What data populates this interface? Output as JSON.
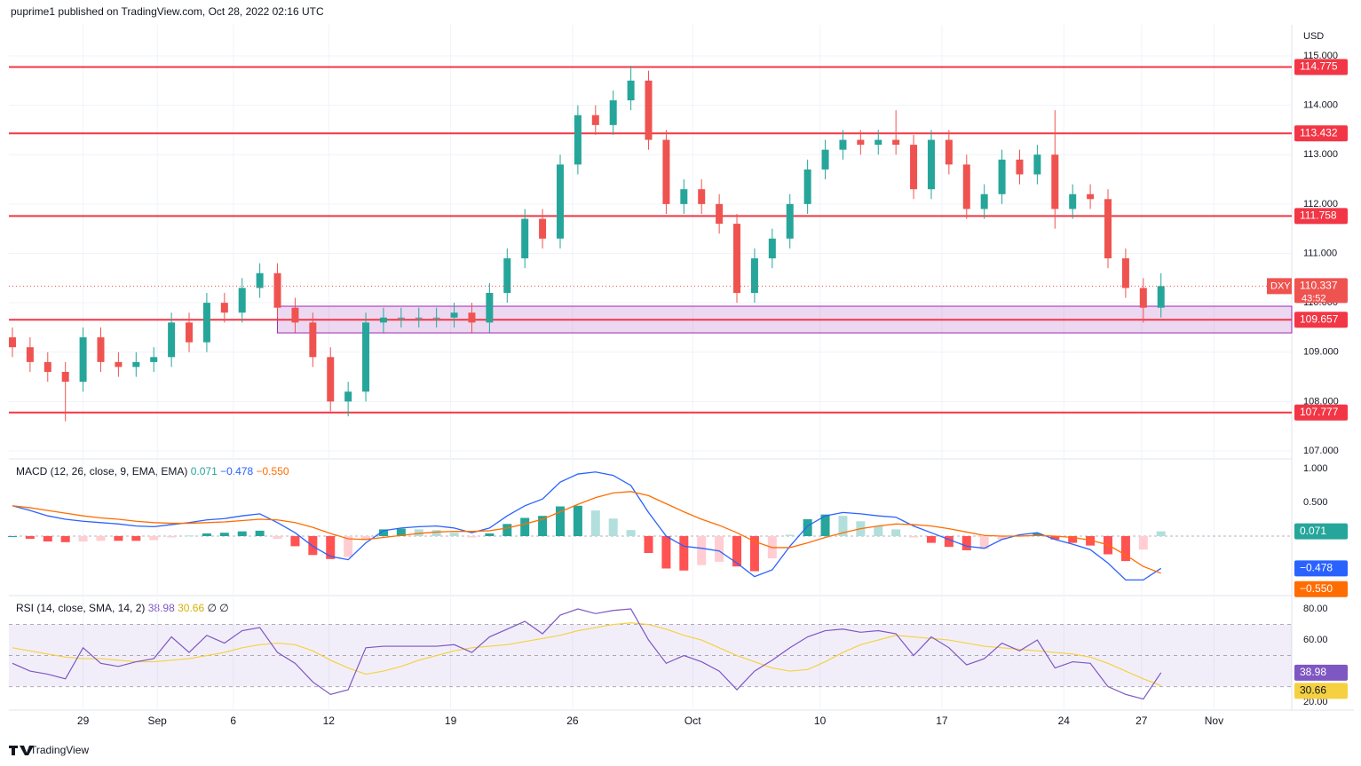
{
  "header": {
    "attribution": "puprime1 published on TradingView.com, Oct 28, 2022 02:16 UTC",
    "currency": "USD",
    "brand": "TradingView"
  },
  "chart_data": [
    {
      "type": "candlestick",
      "up_color": "#26a69a",
      "down_color": "#ef5350",
      "open": [
        109.3,
        109.1,
        108.8,
        108.6,
        108.4,
        109.3,
        108.8,
        108.7,
        108.8,
        108.9,
        109.6,
        109.2,
        110.0,
        109.8,
        110.3,
        110.6,
        109.9,
        109.6,
        108.9,
        108.0,
        108.2,
        109.6,
        109.7,
        109.7,
        109.7,
        109.7,
        109.8,
        109.6,
        110.2,
        110.9,
        111.7,
        111.3,
        112.8,
        113.8,
        113.6,
        114.1,
        114.5,
        113.3,
        112.0,
        112.3,
        112.0,
        111.6,
        110.2,
        110.9,
        111.3,
        112.0,
        112.7,
        113.1,
        113.3,
        113.2,
        113.3,
        113.2,
        112.3,
        113.3,
        112.8,
        111.9,
        112.2,
        112.9,
        112.6,
        113.0,
        111.9,
        112.2,
        112.1,
        110.9,
        110.3,
        109.9
      ],
      "high": [
        109.5,
        109.3,
        109.0,
        108.8,
        109.5,
        109.5,
        109.0,
        109.0,
        109.1,
        109.8,
        109.8,
        110.2,
        110.2,
        110.5,
        110.8,
        110.8,
        110.1,
        109.8,
        109.1,
        108.4,
        109.8,
        109.9,
        109.9,
        109.9,
        109.9,
        110.0,
        110.0,
        110.4,
        111.1,
        111.9,
        111.9,
        113.0,
        114.0,
        114.0,
        114.3,
        114.8,
        114.7,
        113.5,
        112.5,
        112.5,
        112.2,
        111.8,
        111.1,
        111.5,
        112.2,
        112.9,
        113.3,
        113.5,
        113.5,
        113.5,
        113.9,
        113.4,
        113.5,
        113.5,
        113.0,
        112.4,
        113.1,
        113.1,
        113.2,
        113.9,
        112.4,
        112.4,
        112.3,
        111.1,
        110.5,
        110.6
      ],
      "low": [
        108.9,
        108.6,
        108.4,
        107.6,
        108.2,
        108.6,
        108.5,
        108.5,
        108.6,
        108.7,
        109.0,
        109.0,
        109.6,
        109.6,
        110.1,
        109.7,
        109.4,
        108.7,
        107.8,
        107.7,
        108.0,
        109.4,
        109.5,
        109.5,
        109.5,
        109.5,
        109.4,
        109.4,
        110.0,
        110.7,
        111.1,
        111.1,
        112.6,
        113.4,
        113.4,
        113.9,
        113.1,
        111.8,
        111.8,
        111.8,
        111.4,
        110.0,
        110.0,
        110.7,
        111.1,
        111.8,
        112.5,
        112.9,
        113.0,
        113.0,
        113.0,
        112.1,
        112.1,
        112.6,
        111.7,
        111.7,
        112.0,
        112.4,
        112.4,
        111.5,
        111.7,
        111.9,
        110.7,
        110.1,
        109.6,
        109.7
      ],
      "close": [
        109.1,
        108.8,
        108.6,
        108.4,
        109.3,
        108.8,
        108.7,
        108.8,
        108.9,
        109.6,
        109.2,
        110.0,
        109.8,
        110.3,
        110.6,
        109.9,
        109.6,
        108.9,
        108.0,
        108.2,
        109.6,
        109.7,
        109.7,
        109.7,
        109.7,
        109.8,
        109.6,
        110.2,
        110.9,
        111.7,
        111.3,
        112.8,
        113.8,
        113.6,
        114.1,
        114.5,
        113.3,
        112.0,
        112.3,
        112.0,
        111.6,
        110.2,
        110.9,
        111.3,
        112.0,
        112.7,
        113.1,
        113.3,
        113.2,
        113.3,
        113.2,
        112.3,
        113.3,
        112.8,
        111.9,
        112.2,
        112.9,
        112.6,
        113.0,
        111.9,
        112.2,
        112.1,
        110.9,
        110.3,
        109.9,
        110.337
      ],
      "xlim": [
        -0.2,
        72.4
      ],
      "ylim": [
        106.874,
        115.629
      ],
      "xticks": [
        {
          "value": 4,
          "label": "29"
        },
        {
          "value": 8.2,
          "label": "Sep"
        },
        {
          "value": 12.5,
          "label": "6"
        },
        {
          "value": 17.9,
          "label": "12"
        },
        {
          "value": 24.8,
          "label": "19"
        },
        {
          "value": 31.7,
          "label": "26"
        },
        {
          "value": 38.5,
          "label": "Oct"
        },
        {
          "value": 45.7,
          "label": "10"
        },
        {
          "value": 52.6,
          "label": "17"
        },
        {
          "value": 59.5,
          "label": "24"
        },
        {
          "value": 63.9,
          "label": "27"
        },
        {
          "value": 68,
          "label": "Nov"
        }
      ],
      "yticks": [
        {
          "value": 107,
          "label": "107.000"
        },
        {
          "value": 108,
          "label": "108.000"
        },
        {
          "value": 109,
          "label": "109.000"
        },
        {
          "value": 110,
          "label": "110.000"
        },
        {
          "value": 111,
          "label": "111.000"
        },
        {
          "value": 112,
          "label": "112.000"
        },
        {
          "value": 113,
          "label": "113.000"
        },
        {
          "value": 114,
          "label": "114.000"
        },
        {
          "value": 115,
          "label": "115.000"
        }
      ],
      "levels": [
        114.775,
        113.432,
        111.758,
        109.657,
        107.777
      ],
      "level_color": "#f23645",
      "zone": {
        "from": 15,
        "low": 109.39,
        "high": 109.93,
        "color": "#9c27b0"
      },
      "last": {
        "symbol": "DXY",
        "value": 110.337,
        "countdown": "43:52"
      }
    },
    {
      "type": "macd",
      "title": "MACD (12, 26, close, 9, EMA, EMA)",
      "ylim": [
        -0.842,
        1.105
      ],
      "yticks": [
        {
          "value": 1,
          "label": "1.000"
        },
        {
          "value": 0.5,
          "label": "0.500"
        }
      ],
      "series": [
        {
          "name": "MACD",
          "color": "#2962ff",
          "values": [
            0.45,
            0.38,
            0.3,
            0.25,
            0.22,
            0.2,
            0.18,
            0.15,
            0.14,
            0.17,
            0.2,
            0.24,
            0.26,
            0.3,
            0.33,
            0.2,
            0.05,
            -0.15,
            -0.3,
            -0.35,
            -0.1,
            0.08,
            0.12,
            0.14,
            0.15,
            0.12,
            0.05,
            0.12,
            0.3,
            0.45,
            0.55,
            0.8,
            0.92,
            0.95,
            0.9,
            0.75,
            0.35,
            0.0,
            -0.15,
            -0.18,
            -0.22,
            -0.4,
            -0.6,
            -0.5,
            -0.15,
            0.15,
            0.3,
            0.35,
            0.33,
            0.3,
            0.28,
            0.15,
            0.05,
            -0.05,
            -0.15,
            -0.18,
            -0.05,
            0.02,
            0.05,
            -0.05,
            -0.12,
            -0.2,
            -0.4,
            -0.65,
            -0.65,
            -0.478
          ]
        },
        {
          "name": "Signal",
          "color": "#ff6d00",
          "values": [
            0.45,
            0.42,
            0.38,
            0.34,
            0.3,
            0.27,
            0.25,
            0.22,
            0.2,
            0.19,
            0.19,
            0.2,
            0.21,
            0.23,
            0.25,
            0.24,
            0.2,
            0.13,
            0.04,
            -0.04,
            -0.05,
            -0.02,
            0.01,
            0.04,
            0.06,
            0.07,
            0.07,
            0.08,
            0.12,
            0.18,
            0.25,
            0.36,
            0.47,
            0.57,
            0.64,
            0.66,
            0.6,
            0.48,
            0.36,
            0.25,
            0.16,
            0.05,
            -0.08,
            -0.17,
            -0.17,
            -0.1,
            -0.02,
            0.05,
            0.11,
            0.15,
            0.18,
            0.17,
            0.15,
            0.11,
            0.06,
            0.01,
            0.0,
            0.0,
            0.01,
            0.0,
            -0.02,
            -0.06,
            -0.13,
            -0.28,
            -0.45,
            -0.55
          ]
        }
      ],
      "histogram": [
        0,
        -0.04,
        -0.08,
        -0.09,
        -0.08,
        -0.07,
        -0.07,
        -0.07,
        -0.06,
        -0.02,
        0.01,
        0.04,
        0.05,
        0.07,
        0.08,
        -0.04,
        -0.15,
        -0.28,
        -0.34,
        -0.31,
        -0.05,
        0.1,
        0.11,
        0.1,
        0.09,
        0.05,
        -0.02,
        0.04,
        0.18,
        0.27,
        0.3,
        0.44,
        0.45,
        0.38,
        0.26,
        0.09,
        -0.25,
        -0.48,
        -0.51,
        -0.43,
        -0.38,
        -0.45,
        -0.52,
        -0.33,
        0.02,
        0.25,
        0.32,
        0.3,
        0.22,
        0.15,
        0.1,
        -0.02,
        -0.1,
        -0.16,
        -0.21,
        -0.19,
        -0.05,
        0.02,
        0.04,
        -0.05,
        -0.1,
        -0.14,
        -0.27,
        -0.37,
        -0.2,
        0.071
      ],
      "histogram_color": "#26a69a",
      "last_labels": {
        "histogram": "0.071",
        "macd": "−0.478",
        "signal": "−0.550"
      }
    },
    {
      "type": "rsi",
      "title": "RSI (14, close, SMA, 14, 2)",
      "flags": "∅ ∅",
      "ylim": [
        14.9,
        86.3
      ],
      "yticks": [
        {
          "value": 80,
          "label": "80.00"
        },
        {
          "value": 60,
          "label": "60.00"
        },
        {
          "value": 20,
          "label": "20.00"
        }
      ],
      "bands": [
        70,
        50,
        30
      ],
      "series": [
        {
          "color": "#7e57c2",
          "values": [
            45,
            40,
            38,
            35,
            55,
            45,
            43,
            46,
            48,
            62,
            52,
            63,
            58,
            66,
            68,
            52,
            45,
            33,
            25,
            28,
            55,
            56,
            56,
            56,
            56,
            57,
            52,
            62,
            67,
            72,
            64,
            76,
            80,
            77,
            79,
            80,
            60,
            45,
            50,
            46,
            40,
            28,
            40,
            47,
            55,
            62,
            66,
            67,
            65,
            66,
            64,
            50,
            62,
            55,
            44,
            48,
            58,
            53,
            60,
            42,
            46,
            45,
            30,
            25,
            22,
            38.98
          ]
        },
        {
          "color": "#f5d142",
          "values": [
            55,
            53,
            51,
            49,
            48,
            48,
            47,
            46,
            46,
            47,
            48,
            50,
            52,
            55,
            57,
            58,
            57,
            53,
            47,
            42,
            38,
            40,
            43,
            47,
            50,
            53,
            55,
            56,
            57,
            59,
            61,
            63,
            66,
            68,
            70,
            71,
            70,
            67,
            63,
            60,
            55,
            50,
            46,
            42,
            40,
            41,
            46,
            52,
            57,
            60,
            63,
            62,
            61,
            60,
            58,
            56,
            55,
            54,
            53,
            52,
            51,
            49,
            45,
            40,
            35,
            30.66
          ]
        }
      ],
      "last_labels": [
        "38.98",
        "30.66"
      ]
    }
  ]
}
